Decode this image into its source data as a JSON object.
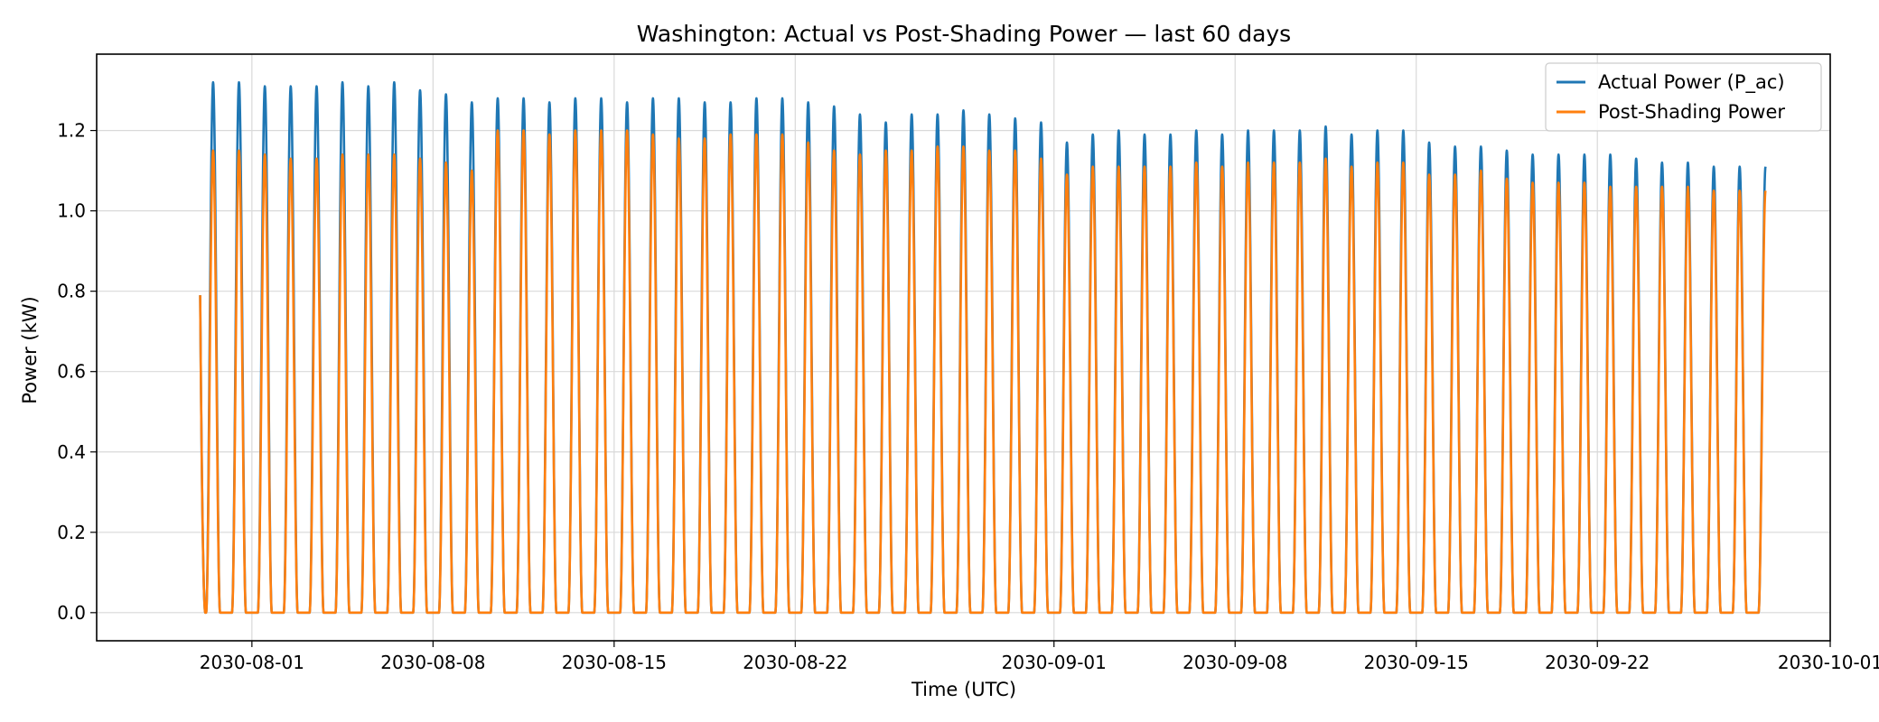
{
  "chart_data": {
    "type": "line",
    "title": "Washington: Actual vs Post-Shading Power — last 60 days",
    "xlabel": "Time (UTC)",
    "ylabel": "Power (kW)",
    "x_start": "2030-07-30",
    "x_end": "2030-09-28",
    "xlim": [
      "2030-07-26",
      "2030-10-01"
    ],
    "ylim": [
      -0.07,
      1.39
    ],
    "x_ticks": [
      "2030-08-01",
      "2030-08-08",
      "2030-08-15",
      "2030-08-22",
      "2030-09-01",
      "2030-09-08",
      "2030-09-15",
      "2030-09-22",
      "2030-10-01"
    ],
    "y_ticks": [
      "0.0",
      "0.2",
      "0.4",
      "0.6",
      "0.8",
      "1.0",
      "1.2"
    ],
    "grid": true,
    "legend_position": "top-right",
    "series": [
      {
        "name": "Actual Power (P_ac)",
        "color": "#1f77b4",
        "daily_peaks": [
          1.32,
          1.32,
          1.31,
          1.31,
          1.31,
          1.32,
          1.31,
          1.32,
          1.3,
          1.29,
          1.27,
          1.28,
          1.28,
          1.27,
          1.28,
          1.28,
          1.27,
          1.28,
          1.28,
          1.27,
          1.27,
          1.28,
          1.28,
          1.27,
          1.26,
          1.24,
          1.22,
          1.24,
          1.24,
          1.25,
          1.24,
          1.23,
          1.22,
          1.17,
          1.19,
          1.2,
          1.19,
          1.19,
          1.2,
          1.19,
          1.2,
          1.2,
          1.2,
          1.21,
          1.19,
          1.2,
          1.2,
          1.17,
          1.16,
          1.16,
          1.15,
          1.14,
          1.14,
          1.14,
          1.14,
          1.13,
          1.12,
          1.12,
          1.11,
          1.11
        ]
      },
      {
        "name": "Post-Shading Power",
        "color": "#ff7f0e",
        "daily_peaks": [
          1.15,
          1.15,
          1.14,
          1.13,
          1.13,
          1.14,
          1.14,
          1.14,
          1.13,
          1.12,
          1.1,
          1.2,
          1.2,
          1.19,
          1.2,
          1.2,
          1.2,
          1.19,
          1.18,
          1.18,
          1.19,
          1.19,
          1.19,
          1.17,
          1.15,
          1.14,
          1.15,
          1.15,
          1.16,
          1.16,
          1.15,
          1.15,
          1.13,
          1.09,
          1.11,
          1.11,
          1.11,
          1.11,
          1.12,
          1.11,
          1.12,
          1.12,
          1.12,
          1.13,
          1.11,
          1.12,
          1.12,
          1.09,
          1.09,
          1.1,
          1.08,
          1.07,
          1.07,
          1.07,
          1.06,
          1.06,
          1.06,
          1.06,
          1.05,
          1.05
        ]
      }
    ]
  }
}
